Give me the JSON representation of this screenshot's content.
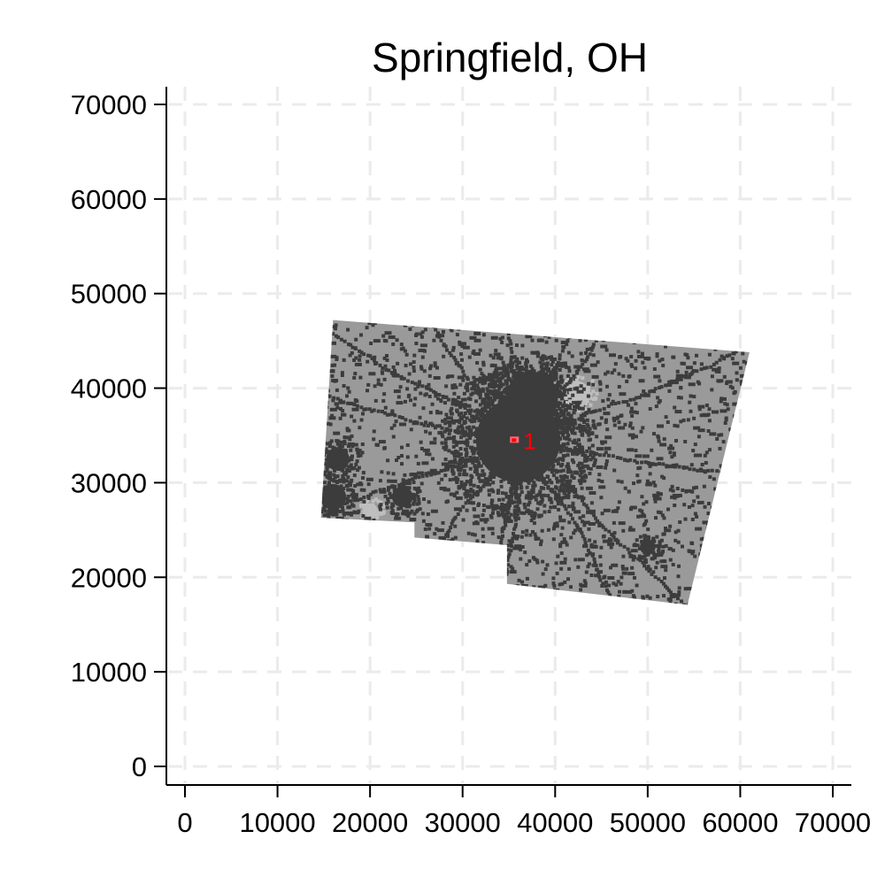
{
  "chart_data": {
    "type": "scatter",
    "title": "Springfield, OH",
    "xlabel": "",
    "ylabel": "",
    "xlim": [
      -2000,
      72000
    ],
    "ylim": [
      -2000,
      72000
    ],
    "x_ticks": [
      0,
      10000,
      20000,
      30000,
      40000,
      50000,
      60000,
      70000
    ],
    "y_ticks": [
      0,
      10000,
      20000,
      30000,
      40000,
      50000,
      60000,
      70000
    ],
    "x_tick_labels": [
      "0",
      "10000",
      "20000",
      "30000",
      "40000",
      "50000",
      "60000",
      "70000"
    ],
    "y_tick_labels": [
      "0",
      "10000",
      "20000",
      "30000",
      "40000",
      "50000",
      "60000",
      "70000"
    ],
    "grid": true,
    "region_outline": [
      [
        16000,
        47200
      ],
      [
        61000,
        43800
      ],
      [
        54300,
        17100
      ],
      [
        34800,
        19300
      ],
      [
        34800,
        23400
      ],
      [
        24800,
        24200
      ],
      [
        24800,
        25800
      ],
      [
        14700,
        26300
      ]
    ],
    "clusters": [
      {
        "x": 36000,
        "y": 34500,
        "radius": 6500,
        "shade": "dark"
      },
      {
        "x": 37500,
        "y": 39000,
        "radius": 4000,
        "shade": "dark"
      },
      {
        "x": 16500,
        "y": 32500,
        "radius": 1800,
        "shade": "dark"
      },
      {
        "x": 16000,
        "y": 28500,
        "radius": 2000,
        "shade": "dark"
      },
      {
        "x": 23500,
        "y": 28500,
        "radius": 1600,
        "shade": "dark"
      },
      {
        "x": 50000,
        "y": 23200,
        "radius": 1200,
        "shade": "dark"
      },
      {
        "x": 42500,
        "y": 39700,
        "radius": 1500,
        "shade": "light"
      },
      {
        "x": 20000,
        "y": 27000,
        "radius": 1200,
        "shade": "light"
      }
    ],
    "highlight": {
      "x": 35600,
      "y": 34500,
      "label": "1"
    },
    "colors": {
      "background": "#ffffff",
      "gridline": "#ebebeb",
      "region": "#9a9a9a",
      "dense": "#3c3c3c",
      "light": "#bebebe",
      "highlight": "#ff0000",
      "axis": "#000000"
    }
  }
}
